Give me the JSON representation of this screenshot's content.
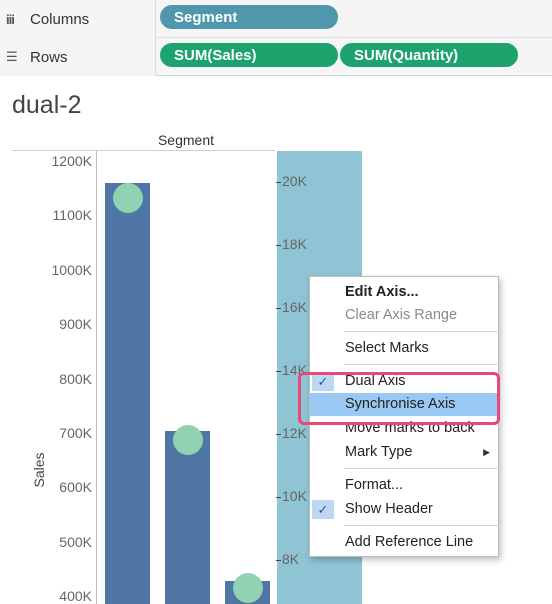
{
  "shelves": {
    "columns": {
      "label": "Columns",
      "icon": "columns-icon",
      "pills": [
        "Segment"
      ]
    },
    "rows": {
      "label": "Rows",
      "icon": "rows-icon",
      "pills": [
        "SUM(Sales)",
        "SUM(Quantity)"
      ]
    }
  },
  "sheet": {
    "title": "dual-2",
    "header": "Segment",
    "y_axis_title": "Sales"
  },
  "chart_data": {
    "type": "bar",
    "ylabel": "Sales",
    "left_axis_ticks": [
      "1200K",
      "1100K",
      "1000K",
      "900K",
      "800K",
      "700K",
      "600K",
      "500K",
      "400K"
    ],
    "right_axis_ticks": [
      "20K",
      "18K",
      "16K",
      "14K",
      "12K",
      "10K",
      "8K"
    ],
    "series": [
      {
        "name": "SUM(Sales)",
        "values": [
          1161000,
          706000,
          429000
        ]
      },
      {
        "name": "SUM(Quantity)",
        "values": [
          19500,
          11800,
          7100
        ]
      }
    ]
  },
  "context_menu": {
    "items": [
      {
        "label": "Edit Axis...",
        "bold": true
      },
      {
        "label": "Clear Axis Range",
        "disabled": true
      },
      {
        "label": "Select Marks"
      },
      {
        "label": "Dual Axis",
        "checked": true
      },
      {
        "label": "Synchronise Axis",
        "highlighted": true
      },
      {
        "label": "Move marks to back"
      },
      {
        "label": "Mark Type",
        "submenu": true
      },
      {
        "label": "Format..."
      },
      {
        "label": "Show Header",
        "checked": true
      },
      {
        "label": "Add Reference Line"
      }
    ],
    "checkmark": "✓",
    "submenu_arrow": "▶"
  },
  "colors": {
    "bar": "#4f76a4",
    "dot": "#8fd3b3",
    "band": "#8ec4d3",
    "dimension_pill": "#4e97ad",
    "measure_pill": "#1fa36e",
    "menu_highlight": "#99c9f2",
    "annotation_box": "#e74a78"
  }
}
